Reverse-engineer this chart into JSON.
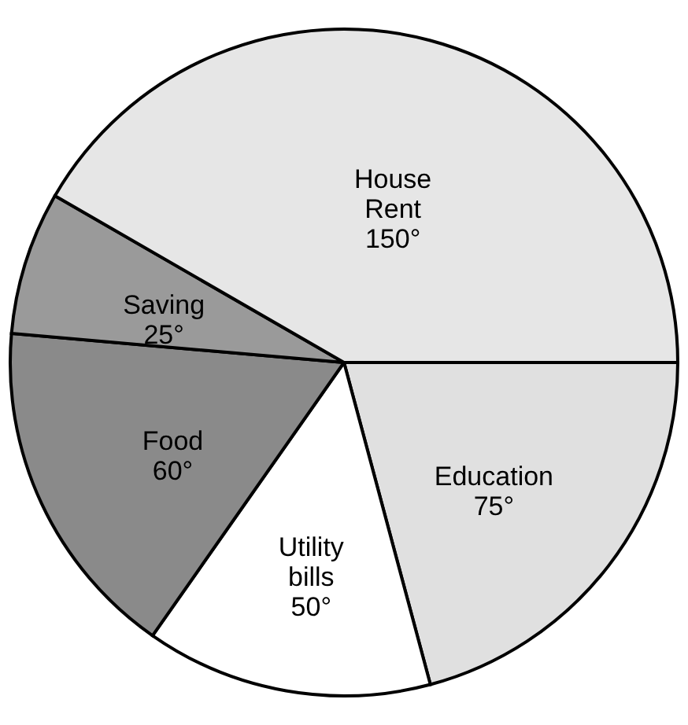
{
  "chart_data": {
    "type": "pie",
    "categories": [
      "Education",
      "Utility bills",
      "Food",
      "Saving",
      "House Rent"
    ],
    "values": [
      75,
      50,
      60,
      25,
      150
    ],
    "value_labels": [
      "75°",
      "50°",
      "60°",
      "25°",
      "150°"
    ],
    "colors": [
      "#e0e0e0",
      "#ffffff",
      "#8a8a8a",
      "#9a9a9a",
      "#e6e6e6"
    ],
    "legend": false
  }
}
